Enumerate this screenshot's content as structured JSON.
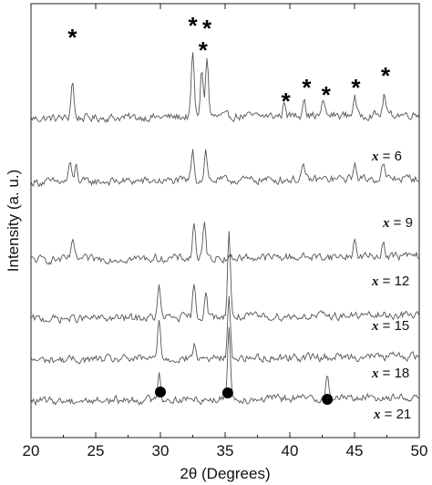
{
  "chart_data": {
    "type": "line",
    "xlabel": "2θ (Degrees)",
    "ylabel": "Intensity (a. u.)",
    "xlim": [
      20,
      50
    ],
    "xticks": [
      20,
      25,
      30,
      35,
      40,
      45,
      50
    ],
    "grid": false,
    "series": [
      {
        "label_var": "x",
        "label_text": " = 6",
        "peaks": [
          {
            "x": 23.2,
            "h": 0.55
          },
          {
            "x": 32.5,
            "h": 0.95
          },
          {
            "x": 33.2,
            "h": 0.7
          },
          {
            "x": 33.6,
            "h": 0.85
          },
          {
            "x": 39.6,
            "h": 0.2
          },
          {
            "x": 41.1,
            "h": 0.3
          },
          {
            "x": 42.6,
            "h": 0.22
          },
          {
            "x": 45.0,
            "h": 0.28
          },
          {
            "x": 47.3,
            "h": 0.3
          }
        ]
      },
      {
        "label_var": "x",
        "label_text": " = 9",
        "peaks": [
          {
            "x": 23.0,
            "h": 0.35
          },
          {
            "x": 23.5,
            "h": 0.3
          },
          {
            "x": 32.5,
            "h": 0.6
          },
          {
            "x": 33.5,
            "h": 0.55
          },
          {
            "x": 41.0,
            "h": 0.25
          },
          {
            "x": 45.0,
            "h": 0.3
          },
          {
            "x": 47.2,
            "h": 0.28
          }
        ]
      },
      {
        "label_var": "x",
        "label_text": " = 12",
        "peaks": [
          {
            "x": 23.2,
            "h": 0.4
          },
          {
            "x": 32.6,
            "h": 0.7
          },
          {
            "x": 33.4,
            "h": 0.65
          },
          {
            "x": 45.0,
            "h": 0.3
          },
          {
            "x": 47.2,
            "h": 0.28
          }
        ]
      },
      {
        "label_var": "x",
        "label_text": " = 15",
        "peaks": [
          {
            "x": 29.9,
            "h": 0.35
          },
          {
            "x": 32.6,
            "h": 0.35
          },
          {
            "x": 33.5,
            "h": 0.3
          },
          {
            "x": 35.3,
            "h": 1.0
          }
        ]
      },
      {
        "label_var": "x",
        "label_text": " = 18",
        "peaks": [
          {
            "x": 29.9,
            "h": 0.65
          },
          {
            "x": 32.6,
            "h": 0.2
          },
          {
            "x": 35.3,
            "h": 0.9
          }
        ]
      },
      {
        "label_var": "x",
        "label_text": " = 21",
        "peaks": [
          {
            "x": 29.9,
            "h": 0.35
          },
          {
            "x": 35.3,
            "h": 0.9
          },
          {
            "x": 42.9,
            "h": 0.25
          }
        ]
      }
    ],
    "star_markers": [
      {
        "label": "*",
        "x": 23.2
      },
      {
        "label": "*",
        "x": 32.5
      },
      {
        "label": "*",
        "x": 33.6
      },
      {
        "label": "*",
        "x": 33.3
      },
      {
        "label": "*",
        "x": 39.7
      },
      {
        "label": "*",
        "x": 41.3
      },
      {
        "label": "*",
        "x": 42.8
      },
      {
        "label": "*",
        "x": 45.1
      },
      {
        "label": "*",
        "x": 47.4
      }
    ],
    "dot_markers": [
      {
        "x": 30.0
      },
      {
        "x": 35.2
      },
      {
        "x": 42.9
      }
    ]
  }
}
